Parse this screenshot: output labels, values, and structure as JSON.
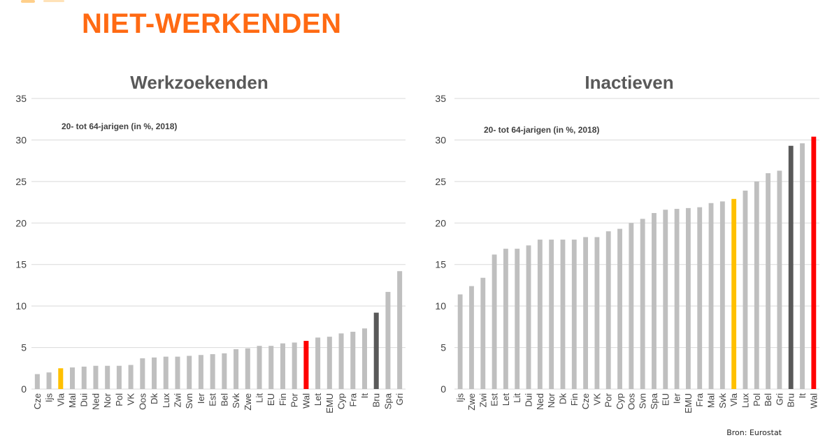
{
  "header": {
    "title": "NIET-WERKENDEN"
  },
  "source": "Bron: Eurostat",
  "colors": {
    "title": "#ff6a13",
    "bar": "#bfbfbf",
    "vla": "#ffc000",
    "wal": "#ff0000",
    "bru": "#595959"
  },
  "chart_data": [
    {
      "type": "bar",
      "title": "Werkzoekenden",
      "annotation": "20- tot 64-jarigen (in %, 2018)",
      "ylim": [
        0,
        35
      ],
      "yticks": [
        0,
        5,
        10,
        15,
        20,
        25,
        30,
        35
      ],
      "grid": true,
      "categories": [
        "Cze",
        "Ijs",
        "Vla",
        "Mal",
        "Dui",
        "Ned",
        "Nor",
        "Pol",
        "VK",
        "Oos",
        "Dk",
        "Lux",
        "Zwi",
        "Svn",
        "Ier",
        "Est",
        "Bel",
        "Svk",
        "Zwe",
        "Lit",
        "EU",
        "Fin",
        "Por",
        "Wal",
        "Let",
        "EMU",
        "Cyp",
        "Fra",
        "It",
        "Bru",
        "Spa",
        "Gri"
      ],
      "values": [
        1.8,
        2.0,
        2.5,
        2.6,
        2.7,
        2.8,
        2.8,
        2.8,
        2.9,
        3.7,
        3.8,
        3.9,
        3.9,
        4.0,
        4.1,
        4.2,
        4.3,
        4.8,
        4.9,
        5.2,
        5.2,
        5.5,
        5.6,
        5.8,
        6.2,
        6.3,
        6.7,
        6.9,
        7.3,
        9.2,
        11.7,
        14.2
      ],
      "highlights": {
        "Vla": "#ffc000",
        "Wal": "#ff0000",
        "Bru": "#595959"
      }
    },
    {
      "type": "bar",
      "title": "Inactieven",
      "annotation": "20- tot 64-jarigen (in %, 2018)",
      "ylim": [
        0,
        35
      ],
      "yticks": [
        0,
        5,
        10,
        15,
        20,
        25,
        30,
        35
      ],
      "grid": true,
      "categories": [
        "Ijs",
        "Zwe",
        "Zwi",
        "Est",
        "Let",
        "Lit",
        "Dui",
        "Ned",
        "Nor",
        "Dk",
        "Fin",
        "Cze",
        "VK",
        "Por",
        "Cyp",
        "Oos",
        "Svn",
        "Spa",
        "EU",
        "Ier",
        "EMU",
        "Fra",
        "Mal",
        "Svk",
        "Vla",
        "Lux",
        "Pol",
        "Bel",
        "Gri",
        "Bru",
        "It",
        "Wal"
      ],
      "values": [
        11.4,
        12.4,
        13.4,
        16.2,
        16.9,
        16.9,
        17.3,
        18.0,
        18.0,
        18.0,
        18.0,
        18.3,
        18.3,
        19.0,
        19.3,
        20.0,
        20.5,
        21.2,
        21.6,
        21.7,
        21.8,
        21.9,
        22.4,
        22.6,
        22.9,
        23.9,
        25.0,
        26.0,
        26.3,
        29.3,
        29.6,
        30.4
      ],
      "highlights": {
        "Vla": "#ffc000",
        "Wal": "#ff0000",
        "Bru": "#595959"
      }
    }
  ]
}
